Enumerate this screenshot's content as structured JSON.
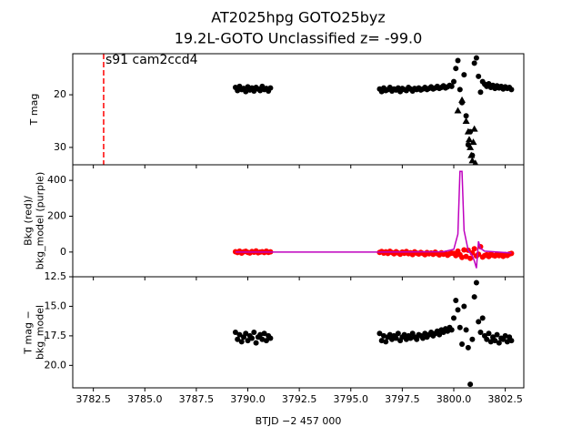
{
  "chart_data": [
    {
      "type": "scatter",
      "title": "AT2025hpg  GOTO25byz",
      "subtitle": "19.2L-GOTO Unclassified z= -99.0",
      "y_label": [
        "T mag"
      ],
      "annotation": "s91 cam2ccd4",
      "vline": 3783.0,
      "vline_color": "#ff0000",
      "xlim": [
        3781.5,
        3803.4
      ],
      "ylim": [
        33.3,
        12.2
      ],
      "yticks": [
        20,
        30
      ],
      "series": [
        {
          "color": "#000000",
          "marker": "circle",
          "x": [
            3789.4,
            3789.5,
            3789.6,
            3789.7,
            3789.8,
            3789.9,
            3790.0,
            3790.1,
            3790.2,
            3790.3,
            3790.4,
            3790.5,
            3790.6,
            3790.7,
            3790.8,
            3790.9,
            3791.0,
            3791.1,
            3796.4,
            3796.5,
            3796.6,
            3796.7,
            3796.8,
            3796.9,
            3797.0,
            3797.1,
            3797.2,
            3797.3,
            3797.4,
            3797.5,
            3797.6,
            3797.7,
            3797.8,
            3797.9,
            3798.0,
            3798.1,
            3798.2,
            3798.3,
            3798.4,
            3798.5,
            3798.6,
            3798.7,
            3798.8,
            3798.9,
            3799.0,
            3799.1,
            3799.2,
            3799.3,
            3799.4,
            3799.5,
            3799.6,
            3799.7,
            3799.8,
            3799.9,
            3800.0,
            3800.1,
            3800.2,
            3800.3,
            3800.4,
            3800.5,
            3800.6,
            3800.7,
            3800.8,
            3800.9,
            3801.0,
            3801.1,
            3801.2,
            3801.3,
            3801.4,
            3801.5,
            3801.6,
            3801.7,
            3801.8,
            3801.9,
            3802.0,
            3802.1,
            3802.2,
            3802.3,
            3802.4,
            3802.5,
            3802.6,
            3802.7,
            3802.8
          ],
          "values": [
            18.6,
            19.2,
            18.4,
            19.0,
            18.8,
            19.4,
            18.5,
            19.1,
            18.7,
            19.3,
            18.6,
            18.9,
            19.2,
            18.4,
            19.0,
            18.8,
            19.3,
            18.7,
            18.9,
            19.4,
            18.7,
            19.2,
            19.0,
            18.6,
            19.3,
            18.9,
            19.1,
            18.7,
            19.4,
            18.8,
            19.0,
            19.2,
            18.6,
            18.9,
            19.3,
            18.8,
            19.0,
            18.7,
            19.1,
            18.9,
            18.6,
            19.0,
            18.8,
            18.5,
            18.9,
            18.7,
            18.4,
            18.8,
            18.6,
            18.3,
            18.7,
            18.5,
            18.2,
            18.4,
            17.5,
            15.0,
            13.5,
            19.0,
            21.5,
            16.2,
            24.0,
            29.5,
            27.0,
            31.5,
            14.0,
            13.0,
            16.5,
            19.5,
            17.5,
            18.0,
            18.4,
            17.9,
            18.6,
            18.2,
            18.8,
            18.3,
            18.7,
            18.4,
            18.9,
            18.5,
            18.8,
            18.6,
            19.0
          ]
        },
        {
          "color": "#000000",
          "marker": "triangle",
          "x": [
            3800.2,
            3800.4,
            3800.6,
            3800.7,
            3800.75,
            3800.8,
            3800.85,
            3800.9,
            3800.95,
            3801.0,
            3801.05
          ],
          "values": [
            23,
            21,
            25,
            27,
            28.5,
            30,
            31.5,
            32.5,
            29,
            26.5,
            33
          ]
        }
      ]
    },
    {
      "type": "scatter",
      "y_label": [
        "Bkg (red)/",
        "bkg_model (purple)"
      ],
      "xlim": [
        3781.5,
        3803.4
      ],
      "ylim": [
        -138,
        487
      ],
      "yticks": [
        0,
        200,
        400
      ],
      "series": [
        {
          "color": "#ff0000",
          "marker": "circle",
          "x": [
            3789.4,
            3789.5,
            3789.6,
            3789.7,
            3789.8,
            3789.9,
            3790.0,
            3790.1,
            3790.2,
            3790.3,
            3790.4,
            3790.5,
            3790.6,
            3790.7,
            3790.8,
            3790.9,
            3791.0,
            3791.1,
            3796.4,
            3796.5,
            3796.6,
            3796.7,
            3796.8,
            3796.9,
            3797.0,
            3797.1,
            3797.2,
            3797.3,
            3797.4,
            3797.5,
            3797.6,
            3797.7,
            3797.8,
            3797.9,
            3798.0,
            3798.1,
            3798.2,
            3798.3,
            3798.4,
            3798.5,
            3798.6,
            3798.7,
            3798.8,
            3798.9,
            3799.0,
            3799.1,
            3799.2,
            3799.3,
            3799.4,
            3799.5,
            3799.6,
            3799.7,
            3799.8,
            3799.9,
            3800.0,
            3800.1,
            3800.2,
            3800.3,
            3800.4,
            3800.5,
            3800.6,
            3800.7,
            3800.8,
            3800.9,
            3801.0,
            3801.1,
            3801.2,
            3801.3,
            3801.4,
            3801.5,
            3801.6,
            3801.7,
            3801.8,
            3801.9,
            3802.0,
            3802.1,
            3802.2,
            3802.3,
            3802.4,
            3802.5,
            3802.6,
            3802.7,
            3802.8
          ],
          "values": [
            2,
            -3,
            5,
            -6,
            1,
            4,
            -2,
            -5,
            3,
            -1,
            6,
            -4,
            0,
            2,
            -3,
            5,
            -2,
            1,
            -2,
            3,
            -6,
            1,
            -8,
            4,
            -3,
            -10,
            2,
            -5,
            -12,
            0,
            -7,
            3,
            -9,
            -4,
            -14,
            1,
            -6,
            -11,
            -2,
            -8,
            -15,
            -3,
            -10,
            -5,
            -13,
            -1,
            -9,
            -16,
            -4,
            -12,
            -7,
            -18,
            -10,
            -6,
            -8,
            -20,
            5,
            -15,
            -30,
            12,
            -25,
            10,
            -35,
            -5,
            18,
            -22,
            -12,
            30,
            -28,
            -20,
            -15,
            -25,
            -10,
            -18,
            -22,
            -12,
            -20,
            -16,
            -24,
            -14,
            -19,
            -11,
            -8
          ]
        },
        {
          "color": "#bf00bf",
          "marker": "line",
          "x": [
            3789.4,
            3796.4,
            3799.5,
            3800.0,
            3800.2,
            3800.3,
            3800.4,
            3800.5,
            3800.7,
            3800.9,
            3801.0,
            3801.1,
            3801.2,
            3801.3,
            3801.5,
            3802.8
          ],
          "values": [
            0,
            0,
            2,
            15,
            100,
            450,
            450,
            120,
            10,
            -20,
            -50,
            -90,
            60,
            20,
            5,
            -5
          ]
        }
      ]
    },
    {
      "type": "scatter",
      "y_label": [
        "T mag −",
        "bkg_model"
      ],
      "x_label": "BTJD −2 457 000",
      "xlim": [
        3781.5,
        3803.4
      ],
      "xticks": [
        3782.5,
        {
          "value": 3785,
          "label": "3785.0"
        },
        3787.5,
        {
          "value": 3790,
          "label": "3790.0"
        },
        3792.5,
        {
          "value": 3795,
          "label": "3795.0"
        },
        3797.5,
        {
          "value": 3800,
          "label": "3800.0"
        },
        3802.5
      ],
      "ylim": [
        21.9,
        12.5
      ],
      "yticks": [
        12.5,
        {
          "value": 15,
          "label": "15.0"
        },
        17.5,
        {
          "value": 20,
          "label": "20.0"
        }
      ],
      "series": [
        {
          "color": "#000000",
          "marker": "circle",
          "x": [
            3789.4,
            3789.5,
            3789.6,
            3789.7,
            3789.8,
            3789.9,
            3790.0,
            3790.1,
            3790.2,
            3790.3,
            3790.4,
            3790.5,
            3790.6,
            3790.7,
            3790.8,
            3790.9,
            3791.0,
            3791.1,
            3796.4,
            3796.5,
            3796.6,
            3796.7,
            3796.8,
            3796.9,
            3797.0,
            3797.1,
            3797.2,
            3797.3,
            3797.4,
            3797.5,
            3797.6,
            3797.7,
            3797.8,
            3797.9,
            3798.0,
            3798.1,
            3798.2,
            3798.3,
            3798.4,
            3798.5,
            3798.6,
            3798.7,
            3798.8,
            3798.9,
            3799.0,
            3799.1,
            3799.2,
            3799.3,
            3799.4,
            3799.5,
            3799.6,
            3799.7,
            3799.8,
            3799.9,
            3800.0,
            3800.1,
            3800.2,
            3800.3,
            3800.4,
            3800.5,
            3800.6,
            3800.7,
            3800.8,
            3800.9,
            3801.0,
            3801.1,
            3801.2,
            3801.3,
            3801.4,
            3801.5,
            3801.6,
            3801.7,
            3801.8,
            3801.9,
            3802.0,
            3802.1,
            3802.2,
            3802.3,
            3802.4,
            3802.5,
            3802.6,
            3802.7,
            3802.8
          ],
          "values": [
            17.2,
            17.8,
            17.4,
            18.0,
            17.6,
            17.3,
            17.9,
            17.5,
            17.7,
            17.2,
            18.1,
            17.6,
            17.4,
            17.8,
            17.3,
            17.9,
            17.5,
            17.7,
            17.3,
            17.9,
            17.5,
            18.0,
            17.6,
            17.4,
            17.8,
            17.5,
            17.7,
            17.3,
            17.9,
            17.6,
            17.4,
            17.8,
            17.5,
            17.7,
            17.3,
            17.6,
            17.8,
            17.4,
            17.5,
            17.7,
            17.3,
            17.6,
            17.4,
            17.2,
            17.5,
            17.3,
            17.1,
            17.4,
            17.0,
            17.2,
            16.9,
            17.1,
            16.8,
            17.0,
            16.0,
            14.5,
            15.3,
            16.8,
            18.2,
            15.0,
            17.0,
            18.5,
            21.6,
            17.8,
            14.2,
            13.0,
            16.3,
            17.2,
            16.0,
            17.5,
            17.8,
            17.3,
            18.0,
            17.6,
            17.9,
            17.4,
            18.1,
            17.7,
            17.8,
            17.5,
            18.0,
            17.6,
            17.9
          ]
        }
      ]
    }
  ]
}
